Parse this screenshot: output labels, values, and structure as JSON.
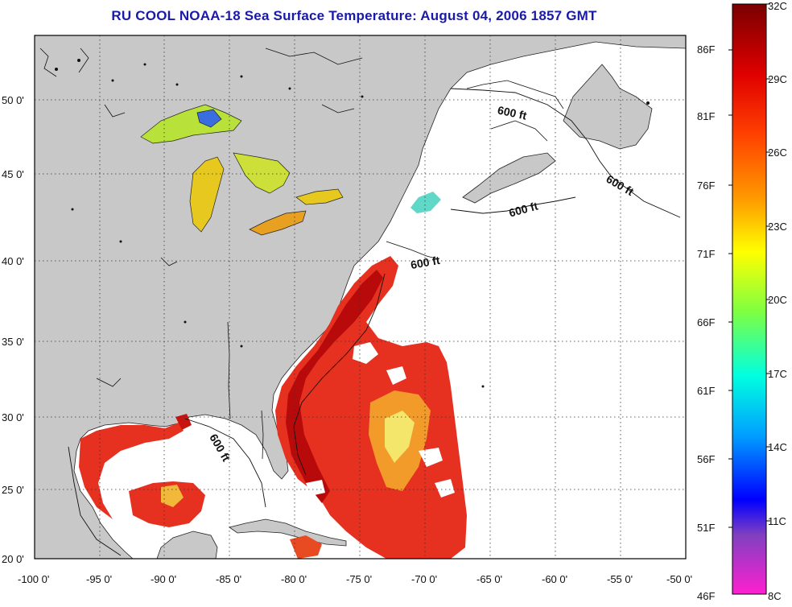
{
  "title": "RU COOL  NOAA-18  Sea Surface Temperature:  August 04, 2006 1857 GMT",
  "lat_ticks": [
    "50 0'",
    "45 0'",
    "40 0'",
    "35 0'",
    "30 0'",
    "25 0'",
    "20 0'"
  ],
  "lon_ticks": [
    "-100 0'",
    "-95 0'",
    "-90 0'",
    "-85 0'",
    "-80 0'",
    "-75 0'",
    "-70 0'",
    "-65 0'",
    "-60 0'",
    "-55 0'",
    "-50 0'"
  ],
  "colorbar": {
    "fahrenheit": [
      "86F",
      "81F",
      "76F",
      "71F",
      "66F",
      "61F",
      "56F",
      "51F",
      "46F"
    ],
    "celsius": [
      "32C",
      "29C",
      "26C",
      "23C",
      "20C",
      "17C",
      "14C",
      "11C",
      "8C"
    ]
  },
  "isobath_labels": [
    "600 ft",
    "600 ft",
    "600 ft",
    "600 ft",
    "600 ft"
  ],
  "colors": {
    "title": "#1a1aa8",
    "land": "#c8c8c8",
    "ocean_no_data": "#ffffff",
    "sst_warm": "#e8281a",
    "sst_hot": "#b40000",
    "lakes": "#e6d21e"
  }
}
